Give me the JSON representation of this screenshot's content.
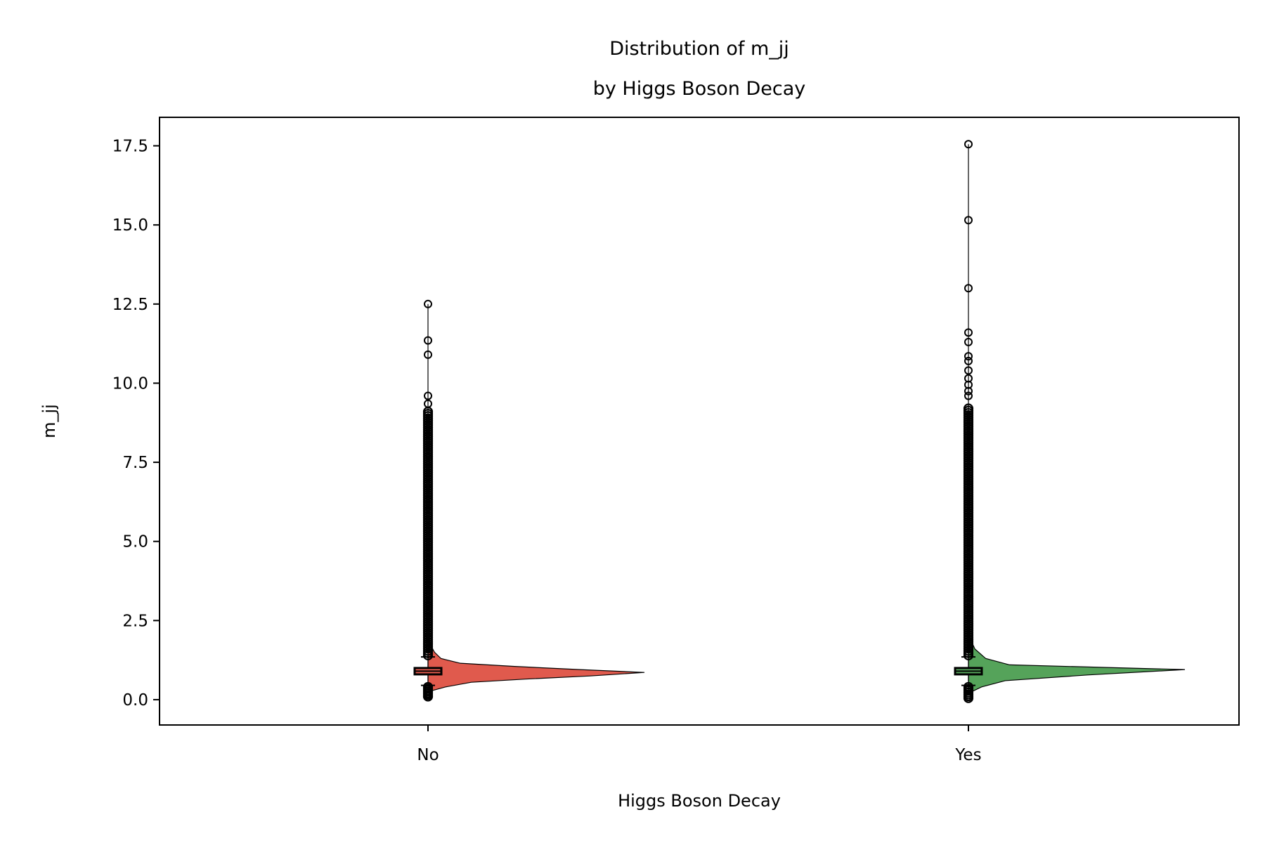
{
  "chart_data": {
    "type": "violin",
    "title_lines": [
      "Distribution of m_jj",
      "by Higgs Boson Decay"
    ],
    "xlabel": "Higgs Boson Decay",
    "ylabel": "m_jj",
    "ylim": [
      -0.8,
      18.4
    ],
    "yticks": [
      0.0,
      2.5,
      5.0,
      7.5,
      10.0,
      12.5,
      15.0,
      17.5
    ],
    "ytick_labels": [
      "0.0",
      "2.5",
      "5.0",
      "7.5",
      "10.0",
      "12.5",
      "15.0",
      "17.5"
    ],
    "categories": [
      "No",
      "Yes"
    ],
    "series": [
      {
        "category": "No",
        "color": "#e05a4d",
        "box": {
          "q1": 0.8,
          "median": 0.9,
          "q3": 1.0,
          "whisker_low": 0.45,
          "whisker_high": 1.35
        },
        "outlier_max": 12.5,
        "outliers_sparse": [
          12.5,
          11.35,
          10.9,
          9.6,
          9.35
        ],
        "outliers_dense_range": [
          [
            1.4,
            9.1
          ],
          [
            0.1,
            0.4
          ]
        ],
        "density": [
          [
            0.25,
            0.0
          ],
          [
            0.4,
            0.08
          ],
          [
            0.55,
            0.2
          ],
          [
            0.65,
            0.45
          ],
          [
            0.75,
            0.75
          ],
          [
            0.86,
            1.0
          ],
          [
            0.95,
            0.7
          ],
          [
            1.05,
            0.4
          ],
          [
            1.15,
            0.15
          ],
          [
            1.3,
            0.06
          ],
          [
            1.5,
            0.03
          ],
          [
            1.75,
            0.01
          ],
          [
            1.9,
            0.0
          ]
        ]
      },
      {
        "category": "Yes",
        "color": "#55a35a",
        "box": {
          "q1": 0.8,
          "median": 0.9,
          "q3": 1.0,
          "whisker_low": 0.45,
          "whisker_high": 1.35
        },
        "outlier_max": 17.55,
        "outliers_sparse": [
          17.55,
          15.15,
          13.0,
          11.6,
          11.3,
          10.85,
          10.7,
          10.4,
          10.15,
          9.95,
          9.75,
          9.6
        ],
        "outliers_dense_range": [
          [
            1.4,
            9.2
          ],
          [
            0.05,
            0.4
          ]
        ],
        "density": [
          [
            0.2,
            0.0
          ],
          [
            0.4,
            0.06
          ],
          [
            0.6,
            0.17
          ],
          [
            0.78,
            0.55
          ],
          [
            0.95,
            1.0
          ],
          [
            1.1,
            0.19
          ],
          [
            1.3,
            0.08
          ],
          [
            1.6,
            0.03
          ],
          [
            1.9,
            0.01
          ],
          [
            2.3,
            0.0
          ]
        ]
      }
    ]
  }
}
